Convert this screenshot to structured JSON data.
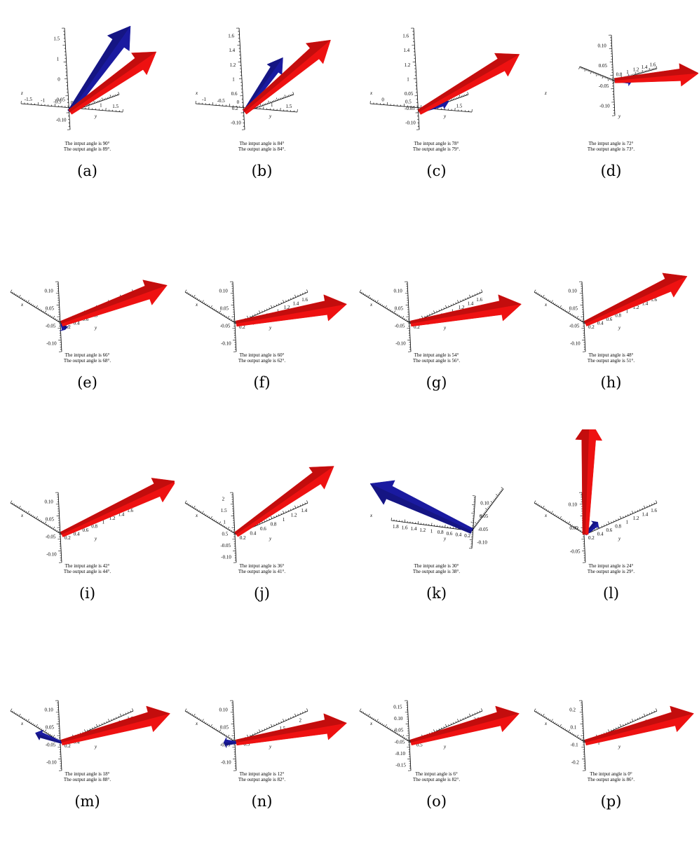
{
  "colors": {
    "output_arrow": "#ee1111",
    "input_arrow": "#1a1aa0"
  },
  "panels": [
    {
      "label": "(a)",
      "in": "The intput angle is 90°",
      "out": "The output angle is 89°.",
      "view": "wide",
      "ticksA": [
        "-1.5",
        "-1",
        "-0.5",
        "0",
        "0.5",
        "1",
        "1.5"
      ],
      "ticksB": [
        "-0.10",
        "-0.05",
        "0",
        "1",
        "1.5"
      ],
      "axisNames": [
        "z",
        "y"
      ],
      "blue": {
        "angle": -55,
        "len": 150
      },
      "red": {
        "angle": -35,
        "len": 150
      }
    },
    {
      "label": "(b)",
      "in": "The intput angle is 84°",
      "out": "The output angle is 84°.",
      "view": "wide",
      "ticksA": [
        "-1",
        "-0.5",
        "0",
        "0.5",
        "1",
        "1.5"
      ],
      "ticksB": [
        "-0.10",
        "0.2",
        "0.6",
        "1",
        "1.2",
        "1.4",
        "1.6"
      ],
      "axisNames": [
        "x",
        "y"
      ],
      "blue": {
        "angle": -55,
        "len": 95
      },
      "red": {
        "angle": -40,
        "len": 160
      }
    },
    {
      "label": "(c)",
      "in": "The intput angle is 78°",
      "out": "The output angle is 79°.",
      "view": "wide",
      "ticksA": [
        "0",
        "0.5",
        "1",
        "1.5"
      ],
      "ticksB": [
        "-0.10",
        "-0.05",
        "0.05",
        "1",
        "1.2",
        "1.4",
        "1.6"
      ],
      "axisNames": [
        "x",
        "y"
      ],
      "blue": {
        "angle": -20,
        "len": 45
      },
      "red": {
        "angle": -30,
        "len": 165
      }
    },
    {
      "label": "(d)",
      "in": "The intput angle is 72°",
      "out": "The output angle is 73°.",
      "view": "small",
      "ticksA": [
        "0.8",
        "1",
        "1.2",
        "1.4",
        "1.6"
      ],
      "ticksB": [
        "-0.10",
        "-0.05",
        "0.05",
        "0.10"
      ],
      "axisNames": [
        "z",
        "y"
      ],
      "blue": {
        "angle": 0,
        "len": 25
      },
      "red": {
        "angle": -5,
        "len": 120
      }
    },
    {
      "label": "(e)",
      "in": "The intput angle is 66°",
      "out": "The output angle is 68°.",
      "view": "std",
      "ticksA": [
        "0.2",
        "0.4",
        "0.6",
        "0.8",
        "1",
        "1.2",
        "1.4",
        "1.6"
      ],
      "ticksB": [
        "-0.10",
        "-0.05",
        "0.05",
        "0.10"
      ],
      "axisNames": [
        "x",
        "y"
      ],
      "blue": {
        "angle": 60,
        "len": 10
      },
      "red": {
        "angle": -20,
        "len": 160
      }
    },
    {
      "label": "(f)",
      "in": "The intput angle is 60°",
      "out": "The output angle is 62°.",
      "view": "std",
      "ticksA": [
        "0.2",
        "0.4",
        "0.6",
        "0.8",
        "1",
        "1.2",
        "1.4",
        "1.6"
      ],
      "ticksB": [
        "-0.10",
        "-0.05",
        "0.05",
        "0.10"
      ],
      "axisNames": [
        "x",
        "y"
      ],
      "blue": null,
      "red": {
        "angle": -10,
        "len": 160
      }
    },
    {
      "label": "(g)",
      "in": "The intput angle is 54°",
      "out": "The output angle is 56°.",
      "view": "std",
      "ticksA": [
        "0.2",
        "0.4",
        "0.6",
        "0.8",
        "1",
        "1.2",
        "1.4",
        "1.6"
      ],
      "ticksB": [
        "-0.10",
        "-0.05",
        "0.05",
        "0.10"
      ],
      "axisNames": [
        "x",
        "y"
      ],
      "blue": null,
      "red": {
        "angle": -10,
        "len": 160
      }
    },
    {
      "label": "(h)",
      "in": "The intput angle is 48°",
      "out": "The output angle is 51°.",
      "view": "std",
      "ticksA": [
        "0.2",
        "0.4",
        "0.6",
        "0.8",
        "1",
        "1.2",
        "1.4",
        "1.6"
      ],
      "ticksB": [
        "-0.10",
        "-0.05",
        "0.05",
        "0.10"
      ],
      "axisNames": [
        "x",
        "y"
      ],
      "blue": null,
      "red": {
        "angle": -25,
        "len": 160
      }
    },
    {
      "label": "(i)",
      "in": "The intput angle is 42°",
      "out": "The output angle is 44°.",
      "view": "std",
      "ticksA": [
        "0.2",
        "0.4",
        "0.6",
        "0.8",
        "1",
        "1.2",
        "1.4",
        "1.6"
      ],
      "ticksB": [
        "-0.10",
        "-0.05",
        "0.05",
        "0.10"
      ],
      "axisNames": [
        "x",
        "y"
      ],
      "blue": null,
      "red": {
        "angle": -25,
        "len": 180
      }
    },
    {
      "label": "(j)",
      "in": "The intput angle is 36°",
      "out": "The output angle is 41°.",
      "view": "std",
      "ticksA": [
        "0.2",
        "0.4",
        "0.6",
        "0.8",
        "1",
        "1.2",
        "1.4"
      ],
      "ticksB": [
        "-0.10",
        "-0.05",
        "0.5",
        "1",
        "1.5",
        "2"
      ],
      "axisNames": [
        "x",
        "y"
      ],
      "blue": null,
      "red": {
        "angle": -35,
        "len": 170
      }
    },
    {
      "label": "(k)",
      "in": "The intput angle is 30°",
      "out": "The output angle is 38°.",
      "view": "rev",
      "ticksA": [
        "1.8",
        "1.6",
        "1.4",
        "1.2",
        "1",
        "0.8",
        "0.6",
        "0.4",
        "0.2"
      ],
      "ticksB": [
        "-0.10",
        "-0.05",
        "0.05",
        "0.10"
      ],
      "axisNames": [
        "x",
        "y"
      ],
      "blue": {
        "angle": 205,
        "len": 160
      },
      "red": null
    },
    {
      "label": "(l)",
      "in": "The intput angle is 24°",
      "out": "The output angle is 29°.",
      "view": "std",
      "ticksA": [
        "0.2",
        "0.4",
        "0.6",
        "0.8",
        "1",
        "1.2",
        "1.4",
        "1.6"
      ],
      "ticksB": [
        "-0.05",
        "0.05",
        "0.10"
      ],
      "axisNames": [
        "x",
        "y"
      ],
      "blue": {
        "angle": -45,
        "len": 25
      },
      "red": {
        "angle": -88,
        "len": 165
      }
    },
    {
      "label": "(m)",
      "in": "The intput angle is 18°",
      "out": "The output angle is 88°.",
      "view": "std",
      "ticksA": [
        "0.2",
        "0.4",
        "0.6",
        "0.8",
        "1.0",
        "1.2",
        "1.4",
        "1.6"
      ],
      "ticksB": [
        "-0.10",
        "-0.05",
        "0.05",
        "0.10"
      ],
      "axisNames": [
        "x",
        "y"
      ],
      "blue": {
        "angle": 200,
        "len": 40
      },
      "red": {
        "angle": -15,
        "len": 160
      }
    },
    {
      "label": "(n)",
      "in": "The intput angle is 12°",
      "out": "The output angle is 82°.",
      "view": "std",
      "ticksA": [
        "0.5",
        "1",
        "1.5",
        "2"
      ],
      "ticksB": [
        "-0.10",
        "-0.05",
        "0.05",
        "0.10"
      ],
      "axisNames": [
        "x",
        "y"
      ],
      "blue": {
        "angle": 180,
        "len": 18
      },
      "red": {
        "angle": -10,
        "len": 160
      }
    },
    {
      "label": "(o)",
      "in": "The intput angle is 6°",
      "out": "The output angle is 82°.",
      "view": "std",
      "ticksA": [
        "0.5",
        "1",
        "1.5",
        "2",
        "2.5"
      ],
      "ticksB": [
        "-0.15",
        "-0.10",
        "-0.05",
        "0.05",
        "0.10",
        "0.15"
      ],
      "axisNames": [
        "x",
        "y"
      ],
      "blue": null,
      "red": {
        "angle": -15,
        "len": 160
      }
    },
    {
      "label": "(p)",
      "in": "The intput angle is 0°",
      "out": "The output angle is 86°.",
      "view": "std",
      "ticksA": [
        "1",
        "2",
        "3"
      ],
      "ticksB": [
        "-0.2",
        "-0.1",
        "0.1",
        "0.2"
      ],
      "axisNames": [
        "x",
        "y"
      ],
      "blue": null,
      "red": {
        "angle": -15,
        "len": 160
      }
    }
  ]
}
